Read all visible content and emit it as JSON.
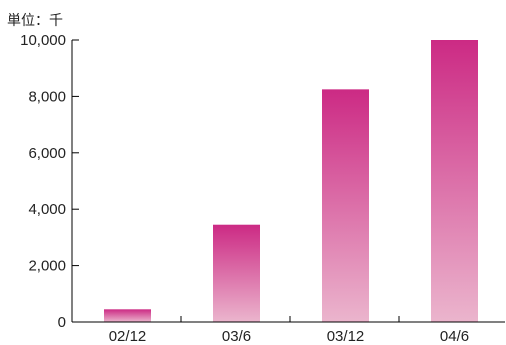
{
  "chart_data": {
    "type": "bar",
    "unit_label": "単位：千",
    "categories": [
      "02/12",
      "03/6",
      "03/12",
      "04/6"
    ],
    "values": [
      450,
      3450,
      8250,
      10000
    ],
    "ylim": [
      0,
      10000
    ],
    "yticks": [
      0,
      2000,
      4000,
      6000,
      8000,
      10000
    ],
    "ytick_labels": [
      "0",
      "2,000",
      "4,000",
      "6,000",
      "8,000",
      "10,000"
    ],
    "grid": false,
    "legend": "none",
    "colors": {
      "bar_top": "#cc2a84",
      "bar_bottom": "#ebb5cd",
      "axis": "#000000"
    }
  }
}
